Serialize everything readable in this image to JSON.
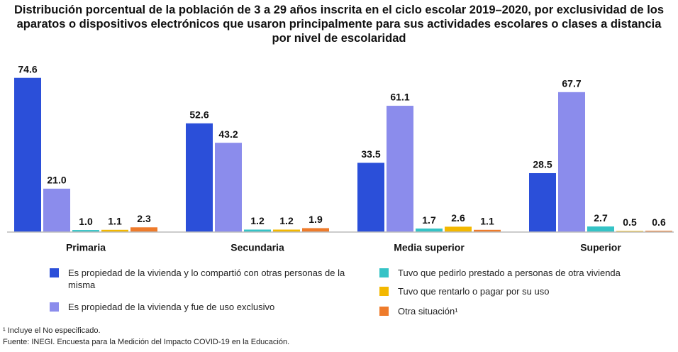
{
  "chart_data": {
    "type": "bar",
    "title": "Distribución porcentual de la población de 3 a 29 años inscrita en el ciclo escolar 2019–2020, por exclusividad de los aparatos o dispositivos electrónicos que usaron principalmente para sus actividades escolares o clases a distancia por nivel de escolaridad",
    "categories": [
      "Primaria",
      "Secundaria",
      "Media superior",
      "Superior"
    ],
    "series": [
      {
        "name": "Es propiedad de la vivienda y lo compartió con otras personas de la misma",
        "color": "#2b4fd9",
        "values": [
          74.6,
          52.6,
          33.5,
          28.5
        ],
        "value_labels": [
          "74.6",
          "52.6",
          "33.5",
          "28.5"
        ]
      },
      {
        "name": "Es propiedad de la vivienda y fue de uso exclusivo",
        "color": "#8b8cec",
        "values": [
          21.0,
          43.2,
          61.1,
          67.7
        ],
        "value_labels": [
          "21.0",
          "43.2",
          "61.1",
          "67.7"
        ]
      },
      {
        "name": "Tuvo que pedirlo prestado a personas de otra vivienda",
        "color": "#35c3c6",
        "values": [
          1.0,
          1.2,
          1.7,
          2.7
        ],
        "value_labels": [
          "1.0",
          "1.2",
          "1.7",
          "2.7"
        ]
      },
      {
        "name": "Tuvo que rentarlo o pagar por su uso",
        "color": "#f3b800",
        "values": [
          1.1,
          1.2,
          2.6,
          0.5
        ],
        "value_labels": [
          "1.1",
          "1.2",
          "2.6",
          "0.5"
        ]
      },
      {
        "name": "Otra situación¹",
        "color": "#ee7b2b",
        "values": [
          2.3,
          1.9,
          1.1,
          0.6
        ],
        "value_labels": [
          "2.3",
          "1.9",
          "1.1",
          "0.6"
        ]
      }
    ],
    "ylim": [
      0,
      80
    ],
    "footnotes": [
      "¹ Incluye el No especificado.",
      "Fuente: INEGI. Encuesta para la Medición del Impacto COVID-19 en la Educación."
    ]
  }
}
